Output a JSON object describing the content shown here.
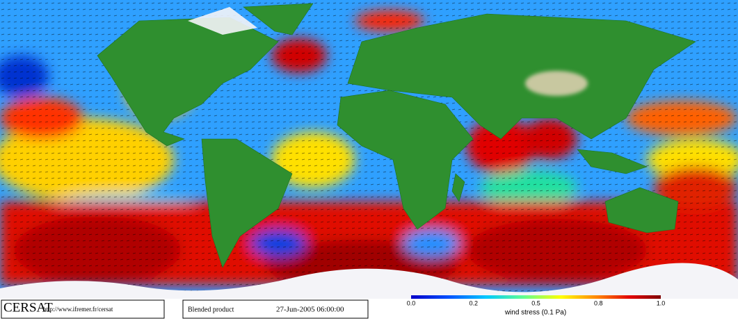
{
  "footer": {
    "logo": "CERSAT",
    "url": "http://www.ifremer.fr/cersat",
    "product": "Blended product",
    "datetime": "27-Jun-2005 06:00:00"
  },
  "colorbar": {
    "ticks": [
      "0.0",
      "0.2",
      "0.5",
      "0.8",
      "1.0"
    ],
    "label": "wind stress (0.1 Pa)"
  }
}
